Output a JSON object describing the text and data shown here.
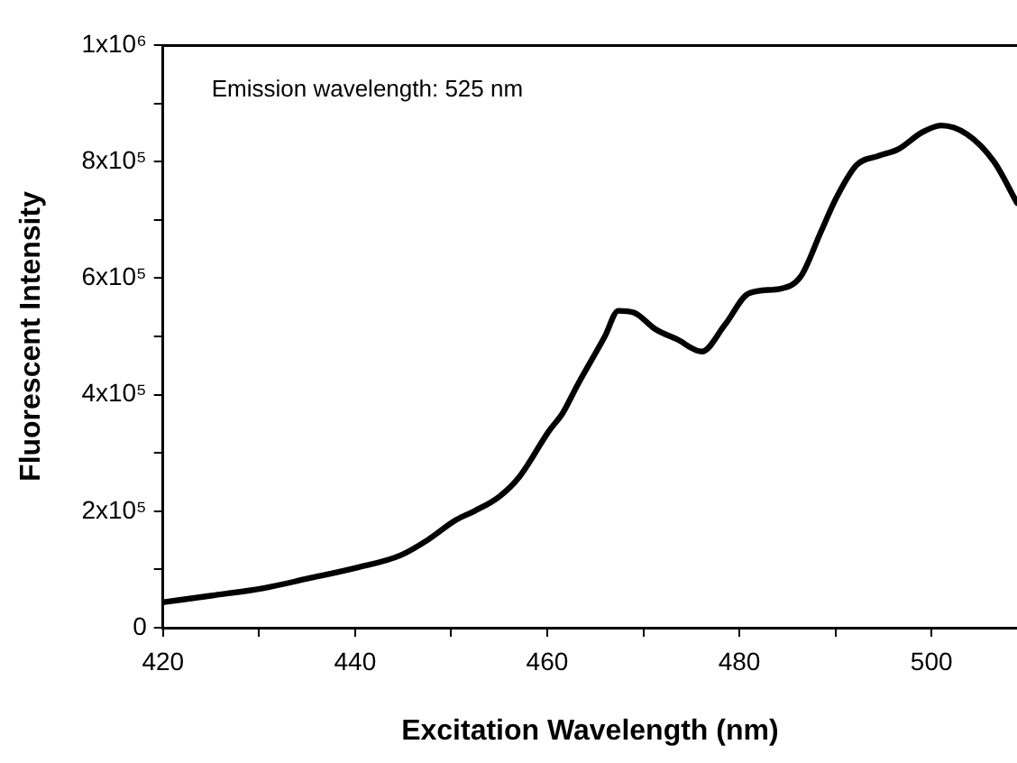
{
  "chart_data": {
    "type": "line",
    "xlabel": "Excitation Wavelength (nm)",
    "ylabel": "Fluorescent Intensity",
    "annotations": [
      "Emission wavelength: 525 nm"
    ],
    "x": [
      420.1,
      425,
      430.5,
      435,
      440.2,
      444.7,
      447.5,
      450.5,
      452.4,
      455,
      457.1,
      460.2,
      461.6,
      463.1,
      466,
      467.4,
      469,
      471.3,
      473.5,
      476.1,
      478.5,
      481,
      484.3,
      486.4,
      488.5,
      490.1,
      492.2,
      494.5,
      496.5,
      499,
      501,
      503.7,
      506.5,
      508.9
    ],
    "series": [
      {
        "color": "#000000",
        "values": [
          44000,
          55000,
          68000,
          84000,
          103000,
          124000,
          150000,
          185000,
          200000,
          225000,
          259000,
          338000,
          368000,
          415000,
          500000,
          544000,
          541000,
          512000,
          495000,
          474000,
          520000,
          574000,
          582000,
          603000,
          680000,
          738000,
          794000,
          810000,
          821000,
          850000,
          862000,
          847000,
          800000,
          729000
        ]
      }
    ],
    "xlim": [
      420,
      508.9
    ],
    "ylim": [
      0,
      1000000
    ],
    "xticks": [
      420,
      {
        "value": 430,
        "label": null
      },
      440,
      {
        "value": 450,
        "label": null
      },
      460,
      {
        "value": 470,
        "label": null
      },
      480,
      {
        "value": 490,
        "label": null
      },
      500
    ],
    "yticks": [
      0,
      {
        "value": 100000,
        "label": null
      },
      {
        "value": 200000,
        "label": "2x10⁵"
      },
      {
        "value": 300000,
        "label": null
      },
      {
        "value": 400000,
        "label": "4x10⁵"
      },
      {
        "value": 500000,
        "label": null
      },
      {
        "value": 600000,
        "label": "6x10⁵"
      },
      {
        "value": 700000,
        "label": null
      },
      {
        "value": 800000,
        "label": "8x10⁵"
      },
      {
        "value": 900000,
        "label": null
      },
      {
        "value": 1000000,
        "label": "1x10⁶"
      }
    ],
    "grid": false,
    "legend": false,
    "marker": "none",
    "line_style": "solid"
  }
}
